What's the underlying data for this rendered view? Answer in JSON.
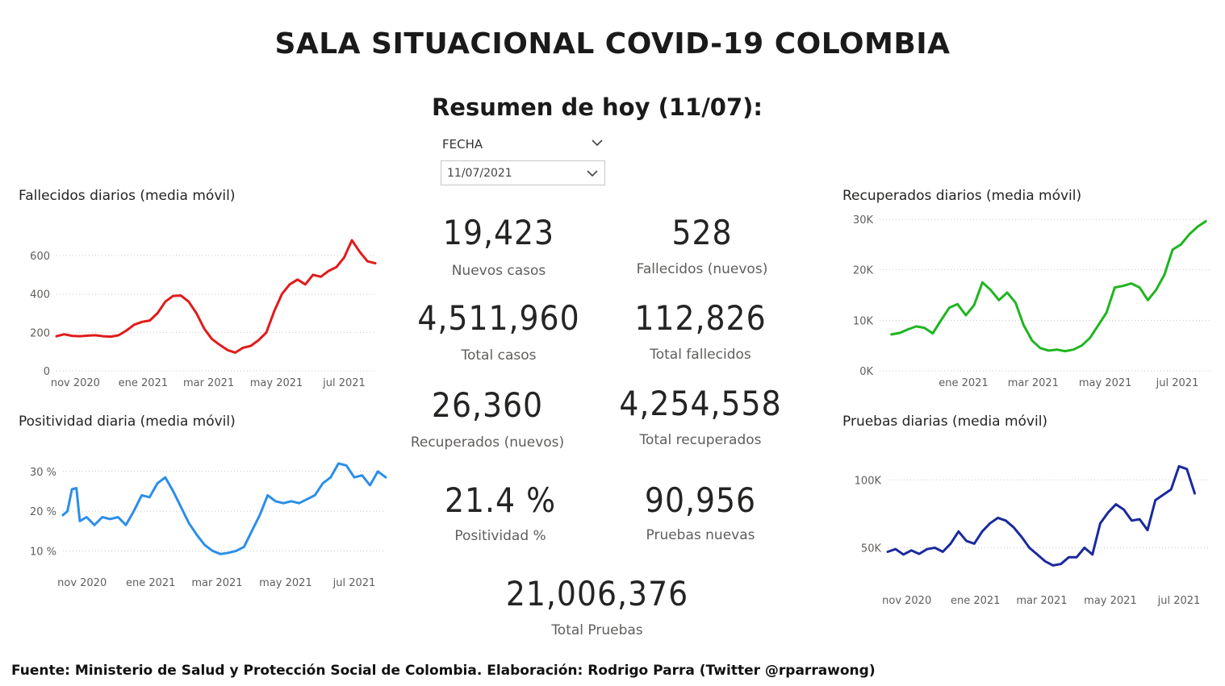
{
  "title": "SALA SITUACIONAL COVID-19 COLOMBIA",
  "subtitle": "Resumen de hoy (11/07):",
  "filter": {
    "label": "FECHA",
    "value": "11/07/2021"
  },
  "kpis": [
    {
      "value": "19,423",
      "label": "Nuevos casos"
    },
    {
      "value": "528",
      "label": "Fallecidos (nuevos)"
    },
    {
      "value": "4,511,960",
      "label": "Total casos"
    },
    {
      "value": "112,826",
      "label": "Total fallecidos"
    },
    {
      "value": "26,360",
      "label": "Recuperados (nuevos)"
    },
    {
      "value": "4,254,558",
      "label": "Total recuperados"
    },
    {
      "value": "21.4 %",
      "label": "Positividad %"
    },
    {
      "value": "90,956",
      "label": "Pruebas nuevas"
    },
    {
      "value": "21,006,376",
      "label": "Total Pruebas"
    }
  ],
  "colors": {
    "deaths": "#e01b1b",
    "positivity": "#2b8ee8",
    "recovered": "#1fb51f",
    "tests": "#1a2a9c",
    "grid": "#c8c8c8"
  },
  "chart_data": [
    {
      "type": "line",
      "title": "Fallecidos diarios (media móvil)",
      "x_tick_labels": [
        "nov 2020",
        "ene 2021",
        "mar 2021",
        "may 2021",
        "jul 2021"
      ],
      "y_tick_labels": [
        "0",
        "200",
        "400",
        "600"
      ],
      "ylim": [
        0,
        680
      ],
      "grid": true,
      "series": [
        {
          "color": "#e01b1b",
          "points": [
            [
              "2020-10-15",
              180
            ],
            [
              "2020-10-22",
              190
            ],
            [
              "2020-10-29",
              182
            ],
            [
              "2020-11-05",
              180
            ],
            [
              "2020-11-12",
              183
            ],
            [
              "2020-11-19",
              185
            ],
            [
              "2020-11-26",
              180
            ],
            [
              "2020-12-03",
              178
            ],
            [
              "2020-12-10",
              185
            ],
            [
              "2020-12-17",
              210
            ],
            [
              "2020-12-24",
              240
            ],
            [
              "2020-12-31",
              255
            ],
            [
              "2021-01-07",
              262
            ],
            [
              "2021-01-14",
              300
            ],
            [
              "2021-01-21",
              360
            ],
            [
              "2021-01-28",
              390
            ],
            [
              "2021-02-04",
              392
            ],
            [
              "2021-02-11",
              360
            ],
            [
              "2021-02-18",
              300
            ],
            [
              "2021-02-25",
              220
            ],
            [
              "2021-03-04",
              165
            ],
            [
              "2021-03-11",
              135
            ],
            [
              "2021-03-18",
              108
            ],
            [
              "2021-03-25",
              95
            ],
            [
              "2021-04-01",
              120
            ],
            [
              "2021-04-08",
              130
            ],
            [
              "2021-04-15",
              160
            ],
            [
              "2021-04-22",
              200
            ],
            [
              "2021-04-29",
              310
            ],
            [
              "2021-05-06",
              400
            ],
            [
              "2021-05-13",
              450
            ],
            [
              "2021-05-20",
              475
            ],
            [
              "2021-05-27",
              450
            ],
            [
              "2021-06-03",
              500
            ],
            [
              "2021-06-10",
              490
            ],
            [
              "2021-06-17",
              520
            ],
            [
              "2021-06-24",
              540
            ],
            [
              "2021-07-01",
              590
            ],
            [
              "2021-07-08",
              680
            ],
            [
              "2021-07-15",
              620
            ],
            [
              "2021-07-22",
              570
            ],
            [
              "2021-07-29",
              560
            ]
          ]
        }
      ]
    },
    {
      "type": "line",
      "title": "Positividad diaria (media móvil)",
      "x_tick_labels": [
        "nov 2020",
        "ene 2021",
        "mar 2021",
        "may 2021",
        "jul 2021"
      ],
      "y_tick_labels": [
        "10 %",
        "20 %",
        "30 %"
      ],
      "ylim": [
        5,
        33
      ],
      "grid": true,
      "series": [
        {
          "color": "#2b8ee8",
          "points": [
            [
              "2020-10-15",
              19
            ],
            [
              "2020-10-19",
              20
            ],
            [
              "2020-10-23",
              25.5
            ],
            [
              "2020-10-27",
              25.8
            ],
            [
              "2020-10-30",
              17.5
            ],
            [
              "2020-11-05",
              18.5
            ],
            [
              "2020-11-12",
              16.5
            ],
            [
              "2020-11-19",
              18.5
            ],
            [
              "2020-11-26",
              18
            ],
            [
              "2020-12-03",
              18.5
            ],
            [
              "2020-12-10",
              16.5
            ],
            [
              "2020-12-17",
              20
            ],
            [
              "2020-12-24",
              24
            ],
            [
              "2020-12-31",
              23.5
            ],
            [
              "2021-01-07",
              27
            ],
            [
              "2021-01-14",
              28.5
            ],
            [
              "2021-01-21",
              25
            ],
            [
              "2021-01-28",
              21
            ],
            [
              "2021-02-04",
              17
            ],
            [
              "2021-02-11",
              14
            ],
            [
              "2021-02-18",
              11.5
            ],
            [
              "2021-02-25",
              10
            ],
            [
              "2021-03-04",
              9.2
            ],
            [
              "2021-03-11",
              9.5
            ],
            [
              "2021-03-18",
              10
            ],
            [
              "2021-03-25",
              11
            ],
            [
              "2021-04-01",
              15
            ],
            [
              "2021-04-08",
              19
            ],
            [
              "2021-04-15",
              24
            ],
            [
              "2021-04-22",
              22.5
            ],
            [
              "2021-04-29",
              22
            ],
            [
              "2021-05-06",
              22.5
            ],
            [
              "2021-05-13",
              22
            ],
            [
              "2021-05-20",
              23
            ],
            [
              "2021-05-27",
              24
            ],
            [
              "2021-06-03",
              27
            ],
            [
              "2021-06-10",
              28.5
            ],
            [
              "2021-06-17",
              32
            ],
            [
              "2021-06-24",
              31.5
            ],
            [
              "2021-07-01",
              28.5
            ],
            [
              "2021-07-08",
              29
            ],
            [
              "2021-07-15",
              26.5
            ],
            [
              "2021-07-22",
              30
            ],
            [
              "2021-07-29",
              28.5
            ]
          ]
        }
      ]
    },
    {
      "type": "line",
      "title": "Recuperados diarios (media móvil)",
      "x_tick_labels": [
        "ene 2021",
        "mar 2021",
        "may 2021",
        "jul 2021"
      ],
      "y_tick_labels": [
        "0K",
        "10K",
        "20K",
        "30K"
      ],
      "ylim": [
        0,
        30000
      ],
      "grid": true,
      "series": [
        {
          "color": "#1fb51f",
          "points": [
            [
              "2020-11-01",
              7200
            ],
            [
              "2020-11-08",
              7500
            ],
            [
              "2020-11-15",
              8200
            ],
            [
              "2020-11-22",
              8800
            ],
            [
              "2020-11-29",
              8500
            ],
            [
              "2020-12-06",
              7400
            ],
            [
              "2020-12-13",
              10000
            ],
            [
              "2020-12-20",
              12500
            ],
            [
              "2020-12-27",
              13200
            ],
            [
              "2021-01-03",
              11000
            ],
            [
              "2021-01-10",
              13000
            ],
            [
              "2021-01-17",
              17500
            ],
            [
              "2021-01-24",
              16000
            ],
            [
              "2021-01-31",
              14000
            ],
            [
              "2021-02-07",
              15500
            ],
            [
              "2021-02-14",
              13500
            ],
            [
              "2021-02-21",
              9000
            ],
            [
              "2021-02-28",
              6000
            ],
            [
              "2021-03-07",
              4500
            ],
            [
              "2021-03-14",
              4000
            ],
            [
              "2021-03-21",
              4200
            ],
            [
              "2021-03-28",
              3900
            ],
            [
              "2021-04-04",
              4200
            ],
            [
              "2021-04-11",
              5000
            ],
            [
              "2021-04-18",
              6500
            ],
            [
              "2021-04-25",
              9000
            ],
            [
              "2021-05-02",
              11500
            ],
            [
              "2021-05-09",
              16500
            ],
            [
              "2021-05-16",
              16800
            ],
            [
              "2021-05-23",
              17300
            ],
            [
              "2021-05-30",
              16500
            ],
            [
              "2021-06-06",
              14000
            ],
            [
              "2021-06-13",
              16000
            ],
            [
              "2021-06-20",
              19000
            ],
            [
              "2021-06-27",
              24000
            ],
            [
              "2021-07-04",
              25000
            ],
            [
              "2021-07-11",
              27000
            ],
            [
              "2021-07-18",
              28500
            ],
            [
              "2021-07-25",
              29600
            ]
          ]
        }
      ]
    },
    {
      "type": "line",
      "title": "Pruebas diarias (media móvil)",
      "x_tick_labels": [
        "nov 2020",
        "ene 2021",
        "mar 2021",
        "may 2021",
        "jul 2021"
      ],
      "y_tick_labels": [
        "50K",
        "100K"
      ],
      "ylim": [
        20000,
        115000
      ],
      "grid": true,
      "series": [
        {
          "color": "#1a2a9c",
          "points": [
            [
              "2020-10-15",
              47000
            ],
            [
              "2020-10-22",
              49000
            ],
            [
              "2020-10-29",
              45000
            ],
            [
              "2020-11-05",
              48000
            ],
            [
              "2020-11-12",
              45500
            ],
            [
              "2020-11-19",
              49000
            ],
            [
              "2020-11-26",
              50000
            ],
            [
              "2020-12-03",
              47000
            ],
            [
              "2020-12-10",
              53000
            ],
            [
              "2020-12-17",
              62000
            ],
            [
              "2020-12-24",
              55000
            ],
            [
              "2020-12-31",
              53000
            ],
            [
              "2021-01-07",
              62000
            ],
            [
              "2021-01-14",
              68000
            ],
            [
              "2021-01-21",
              72000
            ],
            [
              "2021-01-28",
              70000
            ],
            [
              "2021-02-04",
              65000
            ],
            [
              "2021-02-11",
              58000
            ],
            [
              "2021-02-18",
              50000
            ],
            [
              "2021-02-25",
              45000
            ],
            [
              "2021-03-04",
              40000
            ],
            [
              "2021-03-11",
              37000
            ],
            [
              "2021-03-18",
              38000
            ],
            [
              "2021-03-25",
              43000
            ],
            [
              "2021-04-01",
              43000
            ],
            [
              "2021-04-08",
              50000
            ],
            [
              "2021-04-15",
              45000
            ],
            [
              "2021-04-22",
              68000
            ],
            [
              "2021-04-29",
              76000
            ],
            [
              "2021-05-06",
              82000
            ],
            [
              "2021-05-13",
              78000
            ],
            [
              "2021-05-20",
              70000
            ],
            [
              "2021-05-27",
              71000
            ],
            [
              "2021-06-03",
              63000
            ],
            [
              "2021-06-10",
              85000
            ],
            [
              "2021-06-17",
              89000
            ],
            [
              "2021-06-24",
              93000
            ],
            [
              "2021-07-01",
              110000
            ],
            [
              "2021-07-08",
              108000
            ],
            [
              "2021-07-15",
              90000
            ]
          ]
        }
      ]
    }
  ],
  "footer": "Fuente: Ministerio de Salud y Protección Social de Colombia. Elaboración: Rodrigo Parra (Twitter @rparrawong)"
}
